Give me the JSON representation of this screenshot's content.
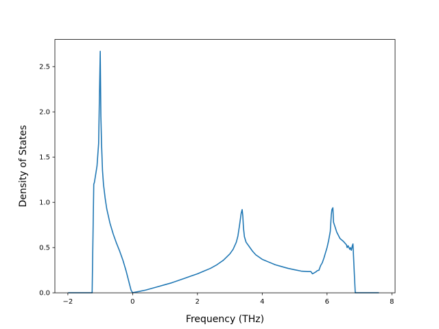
{
  "chart_data": {
    "type": "line",
    "title": "",
    "xlabel": "Frequency (THz)",
    "ylabel": "Density of States",
    "xlim": [
      -2.4,
      8.1
    ],
    "ylim": [
      0,
      2.8
    ],
    "grid": false,
    "xticks": [
      -2,
      0,
      2,
      4,
      6,
      8
    ],
    "xtick_labels": [
      "−2",
      "0",
      "2",
      "4",
      "6",
      "8"
    ],
    "yticks": [
      0,
      0.5,
      1.0,
      1.5,
      2.0,
      2.5
    ],
    "ytick_labels": [
      "0.0",
      "0.5",
      "1.0",
      "1.5",
      "2.0",
      "2.5"
    ],
    "series": [
      {
        "color": "#1f77b4",
        "x": [
          -1.99,
          -1.25,
          -1.2,
          -1.18,
          -1.1,
          -1.05,
          -1.0,
          -0.98,
          -0.96,
          -0.93,
          -0.9,
          -0.85,
          -0.8,
          -0.7,
          -0.6,
          -0.5,
          -0.4,
          -0.3,
          -0.2,
          -0.1,
          -0.05,
          0.0,
          0.05,
          0.2,
          0.4,
          0.6,
          0.8,
          1.0,
          1.2,
          1.4,
          1.6,
          1.8,
          2.0,
          2.2,
          2.4,
          2.6,
          2.8,
          3.0,
          3.1,
          3.2,
          3.25,
          3.3,
          3.35,
          3.38,
          3.4,
          3.42,
          3.45,
          3.5,
          3.6,
          3.7,
          3.8,
          4.0,
          4.2,
          4.4,
          4.6,
          4.8,
          5.0,
          5.2,
          5.4,
          5.5,
          5.55,
          5.6,
          5.65,
          5.7,
          5.75,
          5.8,
          5.85,
          5.9,
          6.0,
          6.05,
          6.1,
          6.13,
          6.15,
          6.18,
          6.2,
          6.3,
          6.4,
          6.5,
          6.6,
          6.62,
          6.65,
          6.7,
          6.72,
          6.75,
          6.78,
          6.8,
          6.83,
          6.87,
          6.9,
          7.0,
          7.6
        ],
        "y": [
          0.0,
          0.0,
          1.2,
          1.22,
          1.4,
          1.65,
          2.67,
          1.95,
          1.65,
          1.35,
          1.2,
          1.05,
          0.93,
          0.77,
          0.65,
          0.55,
          0.46,
          0.36,
          0.24,
          0.1,
          0.03,
          0.0,
          0.005,
          0.015,
          0.03,
          0.05,
          0.07,
          0.09,
          0.11,
          0.135,
          0.16,
          0.185,
          0.21,
          0.24,
          0.27,
          0.31,
          0.36,
          0.43,
          0.48,
          0.56,
          0.63,
          0.75,
          0.88,
          0.92,
          0.85,
          0.72,
          0.62,
          0.56,
          0.51,
          0.46,
          0.42,
          0.37,
          0.34,
          0.31,
          0.29,
          0.27,
          0.255,
          0.24,
          0.235,
          0.235,
          0.21,
          0.22,
          0.23,
          0.245,
          0.25,
          0.3,
          0.33,
          0.38,
          0.5,
          0.58,
          0.68,
          0.86,
          0.92,
          0.94,
          0.78,
          0.67,
          0.6,
          0.57,
          0.53,
          0.5,
          0.52,
          0.48,
          0.5,
          0.47,
          0.52,
          0.54,
          0.3,
          0.0,
          0.0,
          0.0,
          0.0
        ]
      }
    ]
  }
}
